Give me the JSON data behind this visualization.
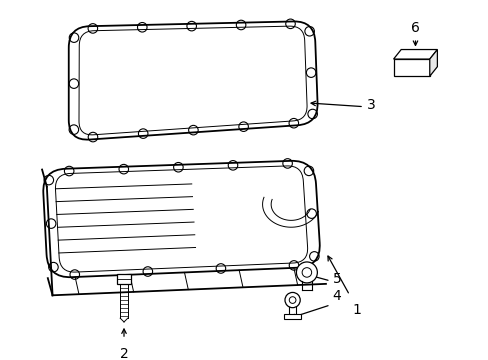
{
  "bg_color": "#ffffff",
  "line_color": "#000000",
  "label_color": "#000000",
  "lw_main": 1.3,
  "lw_thin": 0.7,
  "lw_inner": 0.8
}
